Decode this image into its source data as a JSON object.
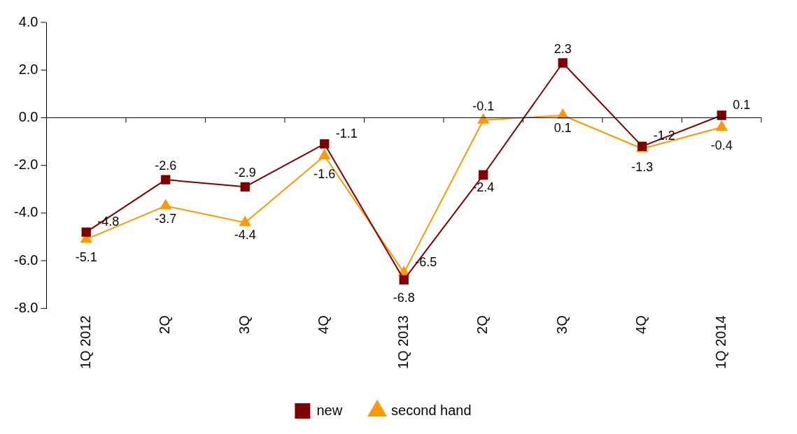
{
  "chart_data": {
    "type": "line",
    "categories": [
      "1Q 2012",
      "2Q",
      "3Q",
      "4Q",
      "1Q 2013",
      "2Q",
      "3Q",
      "4Q",
      "1Q 2014"
    ],
    "series": [
      {
        "name": "new",
        "color": "#800000",
        "marker": "square",
        "values": [
          -4.8,
          -2.6,
          -2.9,
          -1.1,
          -6.8,
          -2.4,
          2.3,
          -1.2,
          0.1
        ]
      },
      {
        "name": "second hand",
        "color": "#ff9900",
        "marker": "triangle",
        "values": [
          -5.1,
          -3.7,
          -4.4,
          -1.6,
          -6.5,
          -0.1,
          0.1,
          -1.3,
          -0.4
        ]
      }
    ],
    "ylim": [
      -8,
      4
    ],
    "yticks": [
      {
        "value": -8,
        "label": "-8.0"
      },
      {
        "value": -6,
        "label": "-6.0"
      },
      {
        "value": -4,
        "label": "-4.0"
      },
      {
        "value": -2,
        "label": "-2.0"
      },
      {
        "value": 0,
        "label": "0.0"
      },
      {
        "value": 2,
        "label": "2.0"
      },
      {
        "value": 4,
        "label": "4.0"
      }
    ],
    "ref_lines": [
      {
        "axis": "y",
        "value": 0
      }
    ],
    "grid": false,
    "legend": "bottom",
    "data_labels": true,
    "line_style": "solid"
  }
}
